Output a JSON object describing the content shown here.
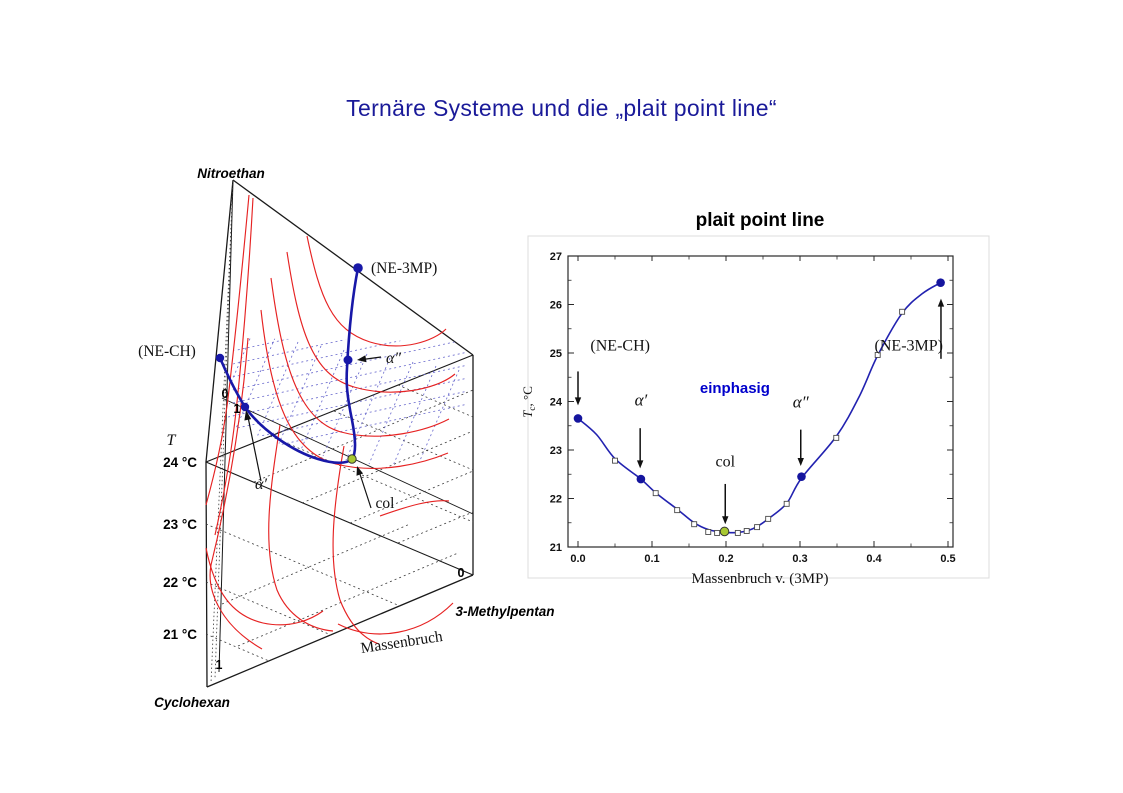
{
  "slide": {
    "title": "Ternäre Systeme und die „plait point line“",
    "title_color": "#1a1a99"
  },
  "colors": {
    "title_navy": "#1a1a99",
    "plait_line_blue": "#1818a8",
    "curve_blue": "#2222b0",
    "binodal_red": "#e62222",
    "grid_blue": "#6666cc",
    "col_green": "#a8c832",
    "einphasig_blue": "#0000cc"
  },
  "prism": {
    "labels": {
      "vertex_top": "Nitroethan",
      "vertex_bottom": "Cyclohexan",
      "vertex_right": "3-Methylpentan",
      "axis_bottom": "Massenbruch",
      "t_axis": "T",
      "temp_ticks": [
        "24 °C",
        "23 °C",
        "22 °C",
        "21 °C"
      ],
      "scale_zero_top": "0",
      "scale_one_top": "1",
      "scale_zero_right": "0",
      "scale_one_bottom": "1",
      "pt_ne_ch": "(NE-CH)",
      "pt_ne_3mp": "(NE-3MP)",
      "pt_alpha_prime": "α′",
      "pt_alpha_dblprime": "α″",
      "pt_col": "col"
    }
  },
  "chart": {
    "ylabel_parts": {
      "main": "T",
      "sub": "c",
      "rest": ", °C"
    }
  },
  "chart_data": {
    "type": "line",
    "title": "plait point line",
    "xlabel": "Massenbruch v. (3MP)",
    "ylabel": "Tc, °C",
    "xlim": [
      0.0,
      0.5
    ],
    "ylim": [
      21,
      27
    ],
    "x_ticks": [
      0.0,
      0.1,
      0.2,
      0.3,
      0.4,
      0.5
    ],
    "x_tick_labels": [
      "0.0",
      "0.1",
      "0.2",
      "0.3",
      "0.4",
      "0.5"
    ],
    "y_ticks": [
      21,
      22,
      23,
      24,
      25,
      26,
      27
    ],
    "y_tick_labels": [
      "21",
      "22",
      "23",
      "24",
      "25",
      "26",
      "27"
    ],
    "legend": "none",
    "grid": false,
    "series": {
      "fit_line": {
        "marker": "none",
        "points": [
          [
            0.0,
            23.65
          ],
          [
            0.025,
            23.32
          ],
          [
            0.05,
            22.82
          ],
          [
            0.085,
            22.4
          ],
          [
            0.105,
            22.12
          ],
          [
            0.134,
            21.78
          ],
          [
            0.157,
            21.5
          ],
          [
            0.176,
            21.36
          ],
          [
            0.198,
            21.3
          ],
          [
            0.216,
            21.3
          ],
          [
            0.23,
            21.34
          ],
          [
            0.242,
            21.42
          ],
          [
            0.257,
            21.58
          ],
          [
            0.282,
            21.9
          ],
          [
            0.302,
            22.42
          ],
          [
            0.349,
            23.28
          ],
          [
            0.38,
            24.1
          ],
          [
            0.405,
            24.95
          ],
          [
            0.438,
            25.82
          ],
          [
            0.465,
            26.22
          ],
          [
            0.49,
            26.45
          ]
        ]
      },
      "data_points": {
        "marker": "open-square",
        "points": [
          [
            0.05,
            22.78
          ],
          [
            0.105,
            22.11
          ],
          [
            0.134,
            21.76
          ],
          [
            0.157,
            21.47
          ],
          [
            0.176,
            21.31
          ],
          [
            0.188,
            21.29
          ],
          [
            0.216,
            21.29
          ],
          [
            0.228,
            21.33
          ],
          [
            0.242,
            21.41
          ],
          [
            0.257,
            21.58
          ],
          [
            0.282,
            21.89
          ],
          [
            0.349,
            23.25
          ],
          [
            0.405,
            24.96
          ],
          [
            0.438,
            25.85
          ]
        ]
      },
      "highlight_points": {
        "marker": "filled-circle-blue",
        "points": [
          [
            0.0,
            23.65
          ],
          [
            0.085,
            22.4
          ],
          [
            0.302,
            22.45
          ],
          [
            0.49,
            26.45
          ]
        ]
      },
      "col_point": {
        "marker": "filled-circle-green",
        "points": [
          [
            0.198,
            21.32
          ]
        ]
      }
    },
    "annotations": [
      {
        "text": "(NE-CH)",
        "style": "serif",
        "label": [
          0.057,
          25.05
        ],
        "arrow": {
          "x": 0.0,
          "from": 24.62,
          "to": 23.92
        }
      },
      {
        "text": "α′",
        "style": "greek",
        "label": [
          0.085,
          23.92
        ],
        "arrow": {
          "x": 0.084,
          "from": 23.45,
          "to": 22.62
        }
      },
      {
        "text": "col",
        "style": "serif",
        "label": [
          0.199,
          22.66
        ],
        "arrow": {
          "x": 0.199,
          "from": 22.3,
          "to": 21.47
        }
      },
      {
        "text": "α″",
        "style": "greek",
        "label": [
          0.301,
          23.88
        ],
        "arrow": {
          "x": 0.301,
          "from": 23.42,
          "to": 22.67
        }
      },
      {
        "text": "(NE-3MP)",
        "style": "serif",
        "label": [
          0.447,
          25.05
        ],
        "arrow": {
          "x": 0.4905,
          "from": 24.88,
          "to": 26.12
        }
      },
      {
        "text": "einphasig",
        "style": "einphasig",
        "label": [
          0.212,
          24.18
        ]
      }
    ]
  }
}
